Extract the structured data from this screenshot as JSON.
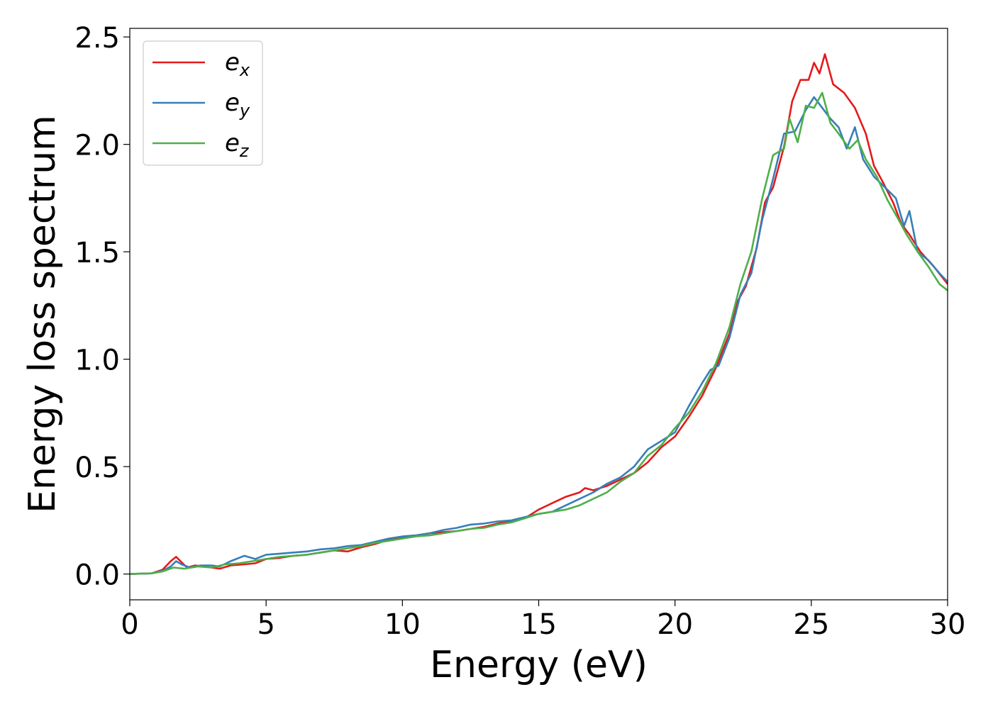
{
  "chart_data": {
    "type": "line",
    "title": "",
    "xlabel": "Energy (eV)",
    "ylabel": "Energy loss spectrum",
    "xlim": [
      0,
      30
    ],
    "ylim": [
      -0.12,
      2.54
    ],
    "xticks": [
      0,
      5,
      10,
      15,
      20,
      25,
      30
    ],
    "xtick_labels": [
      "0",
      "5",
      "10",
      "15",
      "20",
      "25",
      "30"
    ],
    "yticks": [
      0.0,
      0.5,
      1.0,
      1.5,
      2.0,
      2.5
    ],
    "ytick_labels": [
      "0.0",
      "0.5",
      "1.0",
      "1.5",
      "2.0",
      "2.5"
    ],
    "grid": false,
    "legend_position": "top-left",
    "series": [
      {
        "name": "e",
        "subscript": "x",
        "color": "#e41a1c",
        "points": [
          [
            0,
            0
          ],
          [
            0.8,
            0.003
          ],
          [
            1.2,
            0.02
          ],
          [
            1.5,
            0.06
          ],
          [
            1.7,
            0.08
          ],
          [
            1.9,
            0.055
          ],
          [
            2.1,
            0.03
          ],
          [
            2.4,
            0.04
          ],
          [
            2.7,
            0.035
          ],
          [
            3.0,
            0.03
          ],
          [
            3.3,
            0.025
          ],
          [
            3.7,
            0.04
          ],
          [
            4.2,
            0.045
          ],
          [
            4.6,
            0.05
          ],
          [
            5.0,
            0.07
          ],
          [
            5.5,
            0.075
          ],
          [
            6.0,
            0.085
          ],
          [
            6.5,
            0.09
          ],
          [
            7.0,
            0.1
          ],
          [
            7.5,
            0.11
          ],
          [
            8.0,
            0.105
          ],
          [
            8.5,
            0.125
          ],
          [
            9.0,
            0.14
          ],
          [
            9.5,
            0.16
          ],
          [
            10.0,
            0.17
          ],
          [
            10.5,
            0.18
          ],
          [
            11.0,
            0.19
          ],
          [
            11.5,
            0.195
          ],
          [
            12.0,
            0.2
          ],
          [
            12.5,
            0.21
          ],
          [
            13.0,
            0.22
          ],
          [
            13.5,
            0.235
          ],
          [
            14.0,
            0.245
          ],
          [
            14.5,
            0.26
          ],
          [
            15.0,
            0.3
          ],
          [
            15.5,
            0.33
          ],
          [
            16.0,
            0.36
          ],
          [
            16.5,
            0.38
          ],
          [
            16.7,
            0.4
          ],
          [
            17.0,
            0.39
          ],
          [
            17.5,
            0.41
          ],
          [
            18.0,
            0.44
          ],
          [
            18.5,
            0.47
          ],
          [
            19.0,
            0.52
          ],
          [
            19.5,
            0.59
          ],
          [
            20.0,
            0.64
          ],
          [
            20.5,
            0.73
          ],
          [
            21.0,
            0.83
          ],
          [
            21.5,
            0.96
          ],
          [
            22.0,
            1.12
          ],
          [
            22.3,
            1.27
          ],
          [
            22.6,
            1.34
          ],
          [
            23.0,
            1.52
          ],
          [
            23.3,
            1.73
          ],
          [
            23.6,
            1.8
          ],
          [
            24.0,
            1.99
          ],
          [
            24.3,
            2.2
          ],
          [
            24.6,
            2.3
          ],
          [
            24.9,
            2.3
          ],
          [
            25.1,
            2.38
          ],
          [
            25.3,
            2.33
          ],
          [
            25.5,
            2.42
          ],
          [
            25.8,
            2.28
          ],
          [
            26.2,
            2.24
          ],
          [
            26.6,
            2.17
          ],
          [
            27.0,
            2.05
          ],
          [
            27.3,
            1.9
          ],
          [
            27.6,
            1.83
          ],
          [
            28.0,
            1.73
          ],
          [
            28.3,
            1.63
          ],
          [
            28.6,
            1.58
          ],
          [
            29.0,
            1.5
          ],
          [
            29.5,
            1.43
          ],
          [
            30.0,
            1.35
          ]
        ]
      },
      {
        "name": "e",
        "subscript": "y",
        "color": "#377eb8",
        "points": [
          [
            0,
            0
          ],
          [
            0.8,
            0.003
          ],
          [
            1.2,
            0.015
          ],
          [
            1.5,
            0.035
          ],
          [
            1.7,
            0.06
          ],
          [
            1.9,
            0.045
          ],
          [
            2.2,
            0.03
          ],
          [
            2.6,
            0.04
          ],
          [
            3.0,
            0.04
          ],
          [
            3.3,
            0.035
          ],
          [
            3.7,
            0.06
          ],
          [
            4.2,
            0.085
          ],
          [
            4.6,
            0.07
          ],
          [
            5.0,
            0.09
          ],
          [
            5.5,
            0.095
          ],
          [
            6.0,
            0.1
          ],
          [
            6.5,
            0.105
          ],
          [
            7.0,
            0.115
          ],
          [
            7.5,
            0.12
          ],
          [
            8.0,
            0.13
          ],
          [
            8.5,
            0.135
          ],
          [
            9.0,
            0.15
          ],
          [
            9.5,
            0.165
          ],
          [
            10.0,
            0.175
          ],
          [
            10.5,
            0.18
          ],
          [
            11.0,
            0.19
          ],
          [
            11.5,
            0.205
          ],
          [
            12.0,
            0.215
          ],
          [
            12.5,
            0.23
          ],
          [
            13.0,
            0.235
          ],
          [
            13.5,
            0.245
          ],
          [
            14.0,
            0.25
          ],
          [
            14.5,
            0.265
          ],
          [
            15.0,
            0.28
          ],
          [
            15.5,
            0.29
          ],
          [
            16.0,
            0.32
          ],
          [
            16.5,
            0.35
          ],
          [
            17.0,
            0.38
          ],
          [
            17.5,
            0.42
          ],
          [
            18.0,
            0.45
          ],
          [
            18.5,
            0.5
          ],
          [
            19.0,
            0.58
          ],
          [
            19.5,
            0.62
          ],
          [
            20.0,
            0.66
          ],
          [
            20.5,
            0.78
          ],
          [
            21.0,
            0.89
          ],
          [
            21.3,
            0.95
          ],
          [
            21.6,
            0.97
          ],
          [
            22.0,
            1.1
          ],
          [
            22.4,
            1.3
          ],
          [
            22.8,
            1.4
          ],
          [
            23.2,
            1.65
          ],
          [
            23.6,
            1.84
          ],
          [
            24.0,
            2.05
          ],
          [
            24.4,
            2.06
          ],
          [
            24.8,
            2.16
          ],
          [
            25.1,
            2.22
          ],
          [
            25.4,
            2.17
          ],
          [
            25.7,
            2.12
          ],
          [
            26.0,
            2.08
          ],
          [
            26.3,
            1.98
          ],
          [
            26.6,
            2.08
          ],
          [
            26.9,
            1.93
          ],
          [
            27.3,
            1.85
          ],
          [
            27.7,
            1.8
          ],
          [
            28.1,
            1.75
          ],
          [
            28.4,
            1.62
          ],
          [
            28.6,
            1.69
          ],
          [
            28.9,
            1.5
          ],
          [
            29.3,
            1.46
          ],
          [
            29.7,
            1.4
          ],
          [
            30.0,
            1.36
          ]
        ]
      },
      {
        "name": "e",
        "subscript": "z",
        "color": "#4daf4a",
        "points": [
          [
            0,
            0
          ],
          [
            0.8,
            0.003
          ],
          [
            1.2,
            0.012
          ],
          [
            1.6,
            0.03
          ],
          [
            2.0,
            0.025
          ],
          [
            2.5,
            0.035
          ],
          [
            3.0,
            0.03
          ],
          [
            3.5,
            0.045
          ],
          [
            4.0,
            0.05
          ],
          [
            4.5,
            0.06
          ],
          [
            5.0,
            0.07
          ],
          [
            5.5,
            0.08
          ],
          [
            6.0,
            0.085
          ],
          [
            6.5,
            0.09
          ],
          [
            7.0,
            0.1
          ],
          [
            7.5,
            0.11
          ],
          [
            8.0,
            0.12
          ],
          [
            8.5,
            0.13
          ],
          [
            9.0,
            0.145
          ],
          [
            9.5,
            0.155
          ],
          [
            10.0,
            0.165
          ],
          [
            10.5,
            0.175
          ],
          [
            11.0,
            0.18
          ],
          [
            11.5,
            0.19
          ],
          [
            12.0,
            0.2
          ],
          [
            12.5,
            0.21
          ],
          [
            13.0,
            0.215
          ],
          [
            13.5,
            0.23
          ],
          [
            14.0,
            0.24
          ],
          [
            14.5,
            0.26
          ],
          [
            15.0,
            0.28
          ],
          [
            15.5,
            0.29
          ],
          [
            16.0,
            0.3
          ],
          [
            16.5,
            0.32
          ],
          [
            17.0,
            0.35
          ],
          [
            17.5,
            0.38
          ],
          [
            18.0,
            0.43
          ],
          [
            18.5,
            0.47
          ],
          [
            19.0,
            0.55
          ],
          [
            19.5,
            0.6
          ],
          [
            20.0,
            0.68
          ],
          [
            20.5,
            0.75
          ],
          [
            21.0,
            0.85
          ],
          [
            21.5,
            0.98
          ],
          [
            22.0,
            1.15
          ],
          [
            22.4,
            1.35
          ],
          [
            22.8,
            1.5
          ],
          [
            23.2,
            1.75
          ],
          [
            23.6,
            1.95
          ],
          [
            24.0,
            1.98
          ],
          [
            24.2,
            2.12
          ],
          [
            24.5,
            2.01
          ],
          [
            24.8,
            2.18
          ],
          [
            25.1,
            2.17
          ],
          [
            25.4,
            2.24
          ],
          [
            25.7,
            2.1
          ],
          [
            26.0,
            2.05
          ],
          [
            26.4,
            1.98
          ],
          [
            26.7,
            2.02
          ],
          [
            27.0,
            1.93
          ],
          [
            27.4,
            1.85
          ],
          [
            27.8,
            1.74
          ],
          [
            28.2,
            1.65
          ],
          [
            28.5,
            1.58
          ],
          [
            28.9,
            1.5
          ],
          [
            29.3,
            1.43
          ],
          [
            29.7,
            1.35
          ],
          [
            30.0,
            1.32
          ]
        ]
      }
    ]
  }
}
